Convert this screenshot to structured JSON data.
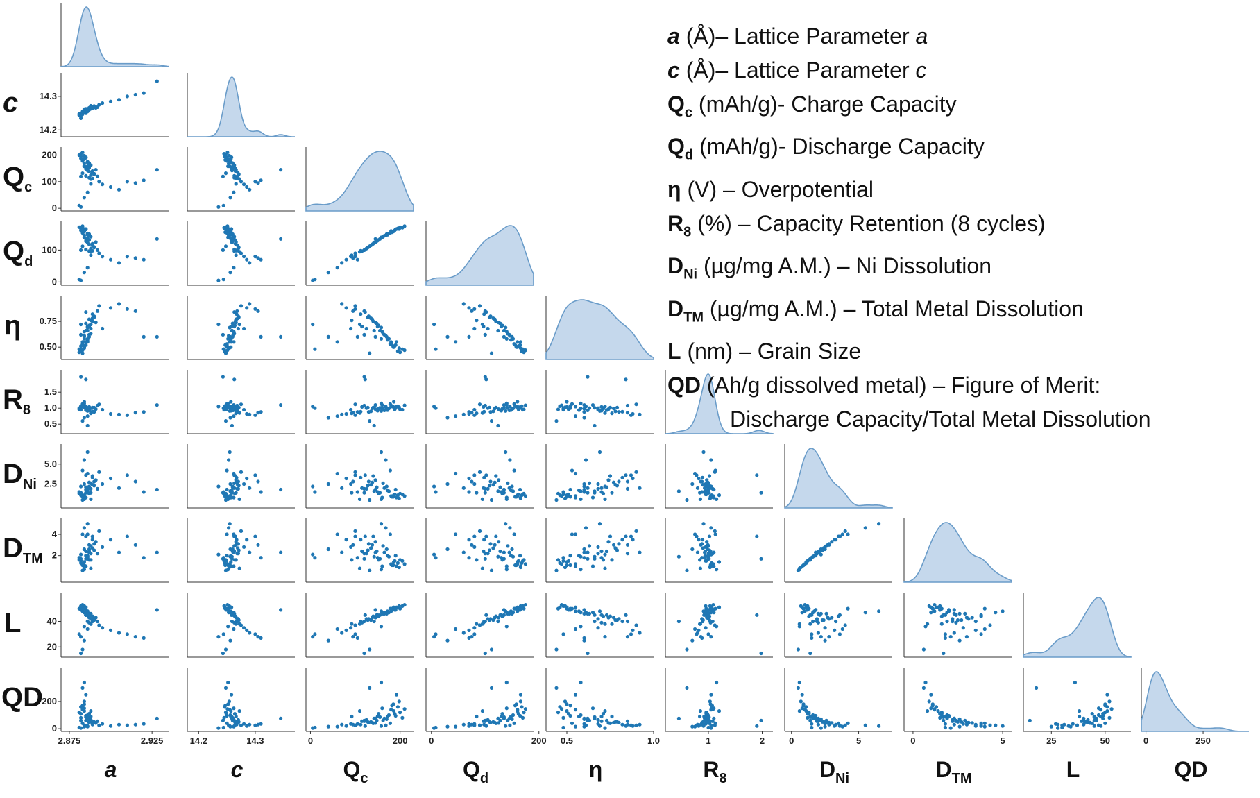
{
  "legend": [
    {
      "sym": "a",
      "sub": "",
      "italic": true,
      "text": " (Å)– Lattice Parameter ",
      "tail": "a"
    },
    {
      "sym": "c",
      "sub": "",
      "italic": true,
      "text": " (Å)– Lattice Parameter ",
      "tail": "c"
    },
    {
      "sym": "Q",
      "sub": "c",
      "italic": false,
      "text": " (mAh/g)- Charge Capacity",
      "tail": ""
    },
    {
      "sym": "Q",
      "sub": "d",
      "italic": false,
      "text": " (mAh/g)- Discharge Capacity",
      "tail": ""
    },
    {
      "sym": "η",
      "sub": "",
      "italic": false,
      "text": " (V) – Overpotential",
      "tail": ""
    },
    {
      "sym": "R",
      "sub": "8",
      "italic": false,
      "text": " (%) – Capacity Retention (8 cycles)",
      "tail": ""
    },
    {
      "sym": "D",
      "sub": "Ni",
      "italic": false,
      "text": " (µg/mg A.M.) – Ni Dissolution",
      "tail": ""
    },
    {
      "sym": "D",
      "sub": "TM",
      "italic": false,
      "text": " (µg/mg A.M.) – Total Metal Dissolution",
      "tail": ""
    },
    {
      "sym": "L",
      "sub": "",
      "italic": false,
      "text": " (nm) – Grain Size",
      "tail": ""
    },
    {
      "sym": "QD",
      "sub": "",
      "italic": false,
      "text": " (Ah/g dissolved metal) – Figure of Merit:",
      "tail": ""
    }
  ],
  "legend_continuation": "Discharge Capacity/Total Metal Dissolution",
  "chart_data": {
    "type": "scatter",
    "kind": "pairplot-lower-triangle-with-kde-diagonal",
    "point_color": "#1f77b4",
    "kde_fill": "#c5d8ec",
    "kde_line": "#6a9cc9",
    "variables": [
      {
        "name": "a",
        "sub": "",
        "italic": true,
        "range": [
          2.87,
          2.935
        ],
        "ticks": [
          2.875,
          2.925
        ],
        "tick_labels": [
          "2.875",
          "2.925"
        ]
      },
      {
        "name": "c",
        "sub": "",
        "italic": true,
        "range": [
          14.18,
          14.37
        ],
        "ticks": [
          14.2,
          14.3
        ],
        "tick_labels": [
          "14.2",
          "14.3"
        ]
      },
      {
        "name": "Q",
        "sub": "c",
        "italic": false,
        "range": [
          -10,
          230
        ],
        "ticks": [
          0,
          100,
          200
        ],
        "tick_labels": [
          "0",
          "100",
          "200"
        ],
        "xticks": [
          0,
          200
        ],
        "xtick_labels": [
          "0",
          "200"
        ]
      },
      {
        "name": "Q",
        "sub": "d",
        "italic": false,
        "range": [
          -10,
          190
        ],
        "ticks": [
          0,
          100
        ],
        "tick_labels": [
          "0",
          "100"
        ],
        "xticks": [
          0,
          200
        ],
        "xtick_labels": [
          "0",
          "200"
        ]
      },
      {
        "name": "η",
        "sub": "",
        "italic": false,
        "range": [
          0.38,
          1.0
        ],
        "ticks": [
          0.5,
          0.75
        ],
        "tick_labels": [
          "0.50",
          "0.75"
        ],
        "xticks": [
          0.5,
          1.0
        ],
        "xtick_labels": [
          "0.5",
          "1.0"
        ]
      },
      {
        "name": "R",
        "sub": "8",
        "italic": false,
        "range": [
          0.2,
          2.2
        ],
        "ticks": [
          0.5,
          1.0,
          1.5
        ],
        "tick_labels": [
          "0.5",
          "1.0",
          "1.5"
        ],
        "xticks": [
          1,
          2
        ],
        "xtick_labels": [
          "1",
          "2"
        ]
      },
      {
        "name": "D",
        "sub": "Ni",
        "italic": false,
        "range": [
          -0.5,
          7.5
        ],
        "ticks": [
          2.5,
          5.0
        ],
        "tick_labels": [
          "2.5",
          "5.0"
        ],
        "xticks": [
          0,
          5
        ],
        "xtick_labels": [
          "0",
          "5"
        ]
      },
      {
        "name": "D",
        "sub": "TM",
        "italic": false,
        "range": [
          -0.5,
          5.5
        ],
        "ticks": [
          2,
          4
        ],
        "tick_labels": [
          "2",
          "4"
        ],
        "xticks": [
          0,
          5
        ],
        "xtick_labels": [
          "0",
          "5"
        ]
      },
      {
        "name": "L",
        "sub": "",
        "italic": false,
        "range": [
          12,
          62
        ],
        "ticks": [
          20,
          40
        ],
        "tick_labels": [
          "20",
          "40"
        ],
        "xticks": [
          25,
          50
        ],
        "xtick_labels": [
          "25",
          "50"
        ]
      },
      {
        "name": "QD",
        "sub": "",
        "italic": false,
        "range": [
          -20,
          450
        ],
        "ticks": [
          0,
          200
        ],
        "tick_labels": [
          "0",
          "200"
        ],
        "xticks": [
          0,
          250
        ],
        "xtick_labels": [
          "0",
          "250"
        ]
      }
    ],
    "samples": [
      [
        2.882,
        14.245,
        205,
        170,
        0.48,
        0.95,
        1.2,
        1.5,
        52,
        80
      ],
      [
        2.885,
        14.25,
        190,
        165,
        0.52,
        1.0,
        1.8,
        2.0,
        49,
        95
      ],
      [
        2.883,
        14.255,
        180,
        160,
        0.55,
        1.05,
        1.0,
        1.2,
        48,
        140
      ],
      [
        2.887,
        14.26,
        170,
        150,
        0.6,
        0.98,
        2.2,
        2.6,
        46,
        70
      ],
      [
        2.884,
        14.262,
        160,
        140,
        0.65,
        1.1,
        0.8,
        1.0,
        47,
        150
      ],
      [
        2.886,
        14.258,
        150,
        130,
        0.7,
        0.92,
        1.5,
        1.8,
        45,
        90
      ],
      [
        2.889,
        14.265,
        140,
        120,
        0.75,
        1.02,
        3.5,
        3.8,
        44,
        40
      ],
      [
        2.881,
        14.248,
        200,
        172,
        0.45,
        0.96,
        1.3,
        1.6,
        50,
        120
      ],
      [
        2.89,
        14.27,
        130,
        110,
        0.8,
        0.88,
        2.8,
        3.1,
        42,
        45
      ],
      [
        2.892,
        14.268,
        120,
        100,
        0.85,
        1.08,
        1.9,
        2.2,
        40,
        55
      ],
      [
        2.888,
        14.272,
        110,
        95,
        0.72,
        0.85,
        0.6,
        0.8,
        38,
        130
      ],
      [
        2.893,
        14.275,
        100,
        90,
        0.9,
        1.12,
        4.0,
        4.3,
        37,
        25
      ],
      [
        2.895,
        14.28,
        90,
        80,
        0.68,
        0.95,
        2.5,
        2.8,
        35,
        35
      ],
      [
        2.884,
        14.252,
        185,
        158,
        0.5,
        1.04,
        0.9,
        1.1,
        50,
        180
      ],
      [
        2.886,
        14.256,
        175,
        152,
        0.58,
        0.99,
        1.6,
        1.9,
        47,
        100
      ],
      [
        2.882,
        14.246,
        195,
        168,
        0.46,
        1.06,
        1.1,
        1.3,
        51,
        160
      ],
      [
        2.887,
        14.261,
        165,
        145,
        0.62,
        0.93,
        2.0,
        2.3,
        46,
        75
      ],
      [
        2.885,
        14.259,
        155,
        135,
        0.66,
        1.01,
        1.4,
        1.7,
        45,
        85
      ],
      [
        2.891,
        14.266,
        145,
        125,
        0.74,
        0.97,
        3.0,
        3.3,
        43,
        42
      ],
      [
        2.883,
        14.251,
        210,
        175,
        0.47,
        1.09,
        1.0,
        1.2,
        53,
        145
      ],
      [
        2.889,
        14.269,
        135,
        115,
        0.78,
        0.9,
        2.4,
        2.7,
        41,
        50
      ],
      [
        2.9,
        14.285,
        80,
        70,
        0.88,
        0.82,
        3.2,
        3.5,
        33,
        20
      ],
      [
        2.905,
        14.29,
        70,
        60,
        0.92,
        0.8,
        2.0,
        2.3,
        31,
        30
      ],
      [
        2.884,
        14.254,
        198,
        166,
        0.49,
        1.03,
        0.7,
        0.9,
        52,
        200
      ],
      [
        2.886,
        14.257,
        172,
        148,
        0.57,
        0.94,
        1.7,
        2.0,
        48,
        90
      ],
      [
        2.888,
        14.263,
        162,
        142,
        0.63,
        1.0,
        2.6,
        2.9,
        46,
        60
      ],
      [
        2.882,
        14.249,
        188,
        162,
        0.51,
        0.96,
        1.2,
        1.5,
        49,
        110
      ],
      [
        2.91,
        14.3,
        100,
        80,
        0.87,
        0.78,
        3.6,
        3.8,
        30,
        25
      ],
      [
        2.915,
        14.305,
        95,
        75,
        0.85,
        0.86,
        2.8,
        3.0,
        28,
        30
      ],
      [
        2.92,
        14.31,
        105,
        70,
        0.6,
        0.88,
        1.5,
        1.8,
        27,
        35
      ],
      [
        2.928,
        14.345,
        145,
        135,
        0.6,
        1.1,
        1.8,
        2.3,
        49,
        75
      ],
      [
        2.884,
        14.253,
        168,
        146,
        0.61,
        1.05,
        5.5,
        4.6,
        47,
        25
      ],
      [
        2.886,
        14.255,
        158,
        138,
        0.69,
        0.91,
        6.5,
        5.0,
        48,
        20
      ],
      [
        2.883,
        14.25,
        178,
        154,
        0.53,
        1.13,
        4.2,
        4.0,
        50,
        40
      ],
      [
        2.885,
        14.258,
        192,
        166,
        0.55,
        1.05,
        0.8,
        1.0,
        51,
        250
      ],
      [
        2.887,
        14.264,
        152,
        132,
        0.71,
        0.98,
        1.3,
        1.6,
        44,
        110
      ],
      [
        2.881,
        14.244,
        10,
        8,
        0.48,
        1.0,
        1.5,
        1.8,
        30,
        8
      ],
      [
        2.882,
        14.235,
        5,
        5,
        0.72,
        1.05,
        2.2,
        2.1,
        28,
        5
      ],
      [
        2.886,
        14.262,
        60,
        45,
        0.55,
        0.75,
        3.8,
        4.0,
        34,
        15
      ],
      [
        2.884,
        14.256,
        40,
        30,
        0.6,
        0.7,
        2.5,
        2.6,
        25,
        15
      ],
      [
        2.888,
        14.27,
        125,
        105,
        0.68,
        1.0,
        1.9,
        2.2,
        42,
        65
      ],
      [
        2.885,
        14.26,
        148,
        128,
        0.73,
        0.94,
        2.1,
        2.4,
        45,
        60
      ],
      [
        2.883,
        14.247,
        182,
        156,
        0.52,
        1.07,
        0.9,
        1.1,
        50,
        170
      ],
      [
        2.887,
        14.266,
        138,
        118,
        0.77,
        0.99,
        2.7,
        3.0,
        43,
        45
      ],
      [
        2.889,
        14.267,
        112,
        98,
        0.82,
        0.89,
        3.3,
        3.5,
        40,
        30
      ],
      [
        2.89,
        14.271,
        128,
        108,
        0.79,
        1.02,
        2.3,
        2.5,
        41,
        50
      ],
      [
        2.884,
        14.257,
        186,
        160,
        0.5,
        1.2,
        1.1,
        1.4,
        51,
        130
      ],
      [
        2.885,
        14.263,
        122,
        102,
        0.84,
        1.9,
        3.6,
        3.8,
        45,
        20
      ],
      [
        2.886,
        14.259,
        142,
        124,
        0.66,
        0.45,
        1.6,
        1.9,
        40,
        75
      ],
      [
        2.882,
        14.243,
        120,
        100,
        0.62,
        1.98,
        1.4,
        1.7,
        15,
        60
      ],
      [
        2.883,
        14.248,
        132,
        112,
        0.44,
        0.6,
        0.5,
        0.6,
        18,
        300
      ],
      [
        2.884,
        14.252,
        158,
        140,
        0.58,
        1.15,
        0.6,
        0.7,
        36,
        340
      ],
      [
        2.888,
        14.266,
        92,
        84,
        0.76,
        0.84,
        1.4,
        1.6,
        38,
        90
      ],
      [
        2.887,
        14.263,
        115,
        97,
        0.7,
        1.04,
        2.0,
        2.4,
        39,
        55
      ]
    ]
  }
}
